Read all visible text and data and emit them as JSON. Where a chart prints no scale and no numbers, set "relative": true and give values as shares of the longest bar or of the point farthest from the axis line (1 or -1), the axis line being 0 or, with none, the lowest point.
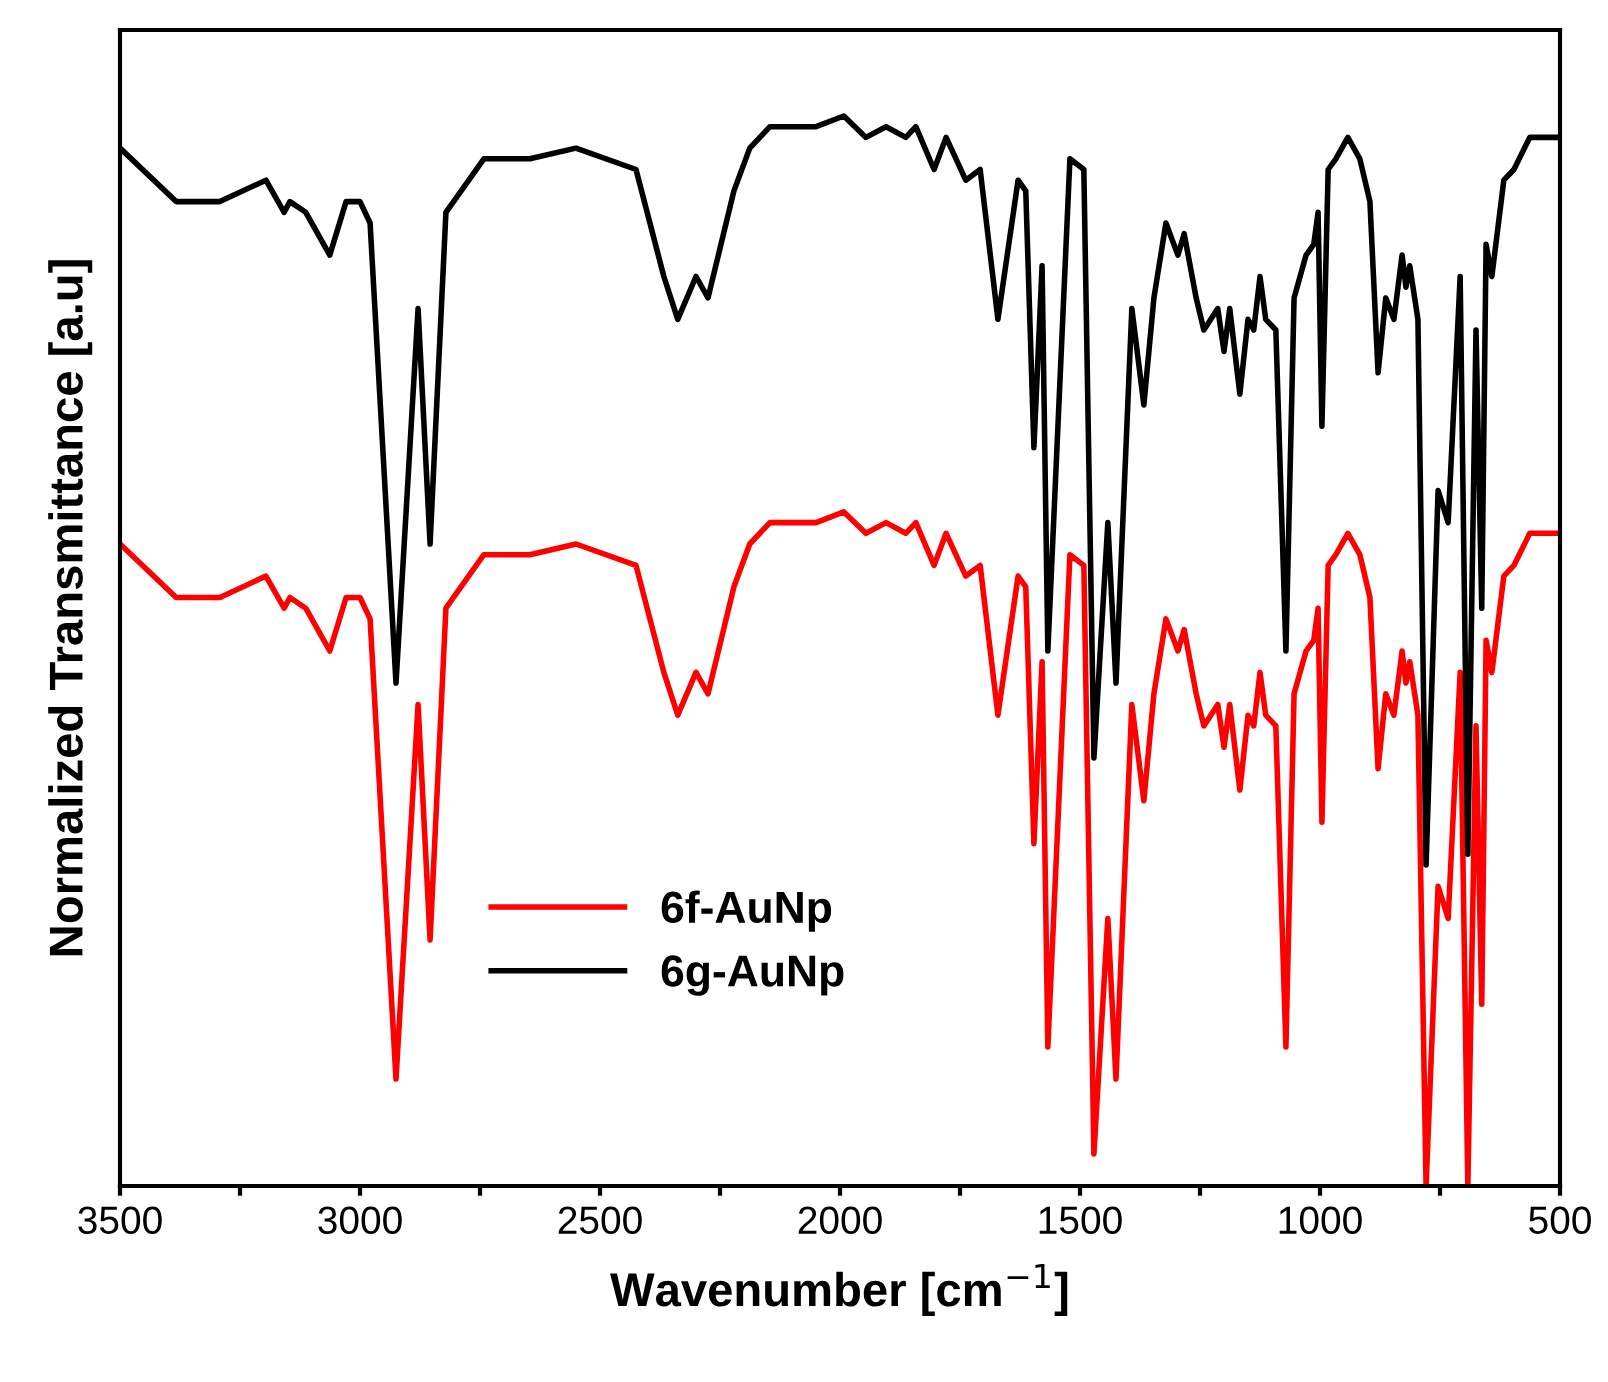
{
  "chart_data": {
    "type": "line",
    "relative": true,
    "xlabel": "Wavenumber [cm$^{−1}$]",
    "ylabel": "Normalized Transmittance [a.u]",
    "x": [
      3500,
      3383,
      3292,
      3196,
      3158,
      3146,
      3113,
      3063,
      3029,
      3000,
      2979,
      2925,
      2879,
      2854,
      2821,
      2742,
      2646,
      2550,
      2425,
      2367,
      2338,
      2300,
      2275,
      2221,
      2188,
      2146,
      2050,
      1992,
      1946,
      1904,
      1863,
      1842,
      1804,
      1779,
      1738,
      1708,
      1671,
      1629,
      1613,
      1596,
      1579,
      1567,
      1521,
      1492,
      1471,
      1442,
      1425,
      1392,
      1367,
      1346,
      1321,
      1296,
      1283,
      1258,
      1242,
      1213,
      1200,
      1188,
      1167,
      1150,
      1138,
      1125,
      1113,
      1092,
      1071,
      1054,
      1029,
      1013,
      1004,
      996,
      983,
      967,
      942,
      917,
      896,
      879,
      863,
      846,
      829,
      821,
      813,
      796,
      779,
      754,
      733,
      708,
      692,
      675,
      663,
      654,
      642,
      617,
      596,
      563,
      542,
      521,
      500
    ],
    "xlim": [
      3500,
      500
    ],
    "xticks": [
      3500,
      {
        "value": 3250,
        "label": null
      },
      3000,
      {
        "value": 2750,
        "label": null
      },
      2500,
      {
        "value": 2250,
        "label": null
      },
      2000,
      {
        "value": 1750,
        "label": null
      },
      1500,
      {
        "value": 1250,
        "label": null
      },
      1000,
      {
        "value": 750,
        "label": null
      },
      500
    ],
    "series": [
      {
        "name": "6f-AuNp",
        "color": "#ff0000",
        "values": [
          0.6,
          0.55,
          0.55,
          0.57,
          0.54,
          0.55,
          0.54,
          0.5,
          0.55,
          0.55,
          0.53,
          0.1,
          0.45,
          0.23,
          0.54,
          0.59,
          0.59,
          0.6,
          0.58,
          0.48,
          0.44,
          0.48,
          0.46,
          0.56,
          0.6,
          0.62,
          0.62,
          0.63,
          0.61,
          0.62,
          0.61,
          0.62,
          0.58,
          0.61,
          0.57,
          0.58,
          0.44,
          0.57,
          0.56,
          0.32,
          0.49,
          0.13,
          0.59,
          0.58,
          0.03,
          0.25,
          0.1,
          0.45,
          0.36,
          0.46,
          0.53,
          0.5,
          0.52,
          0.46,
          0.43,
          0.45,
          0.41,
          0.45,
          0.37,
          0.44,
          0.43,
          0.48,
          0.44,
          0.43,
          0.13,
          0.46,
          0.5,
          0.51,
          0.54,
          0.34,
          0.58,
          0.59,
          0.61,
          0.59,
          0.55,
          0.39,
          0.46,
          0.44,
          0.5,
          0.47,
          0.49,
          0.44,
          0,
          0.28,
          0.25,
          0.48,
          0,
          0.43,
          0.17,
          0.51,
          0.48,
          0.57,
          0.58,
          0.61,
          0.61,
          0.61,
          0.61
        ]
      },
      {
        "name": "6g-AuNp",
        "color": "#000000",
        "values": [
          0.97,
          0.92,
          0.92,
          0.94,
          0.91,
          0.92,
          0.91,
          0.87,
          0.92,
          0.92,
          0.9,
          0.47,
          0.82,
          0.6,
          0.91,
          0.96,
          0.96,
          0.97,
          0.95,
          0.85,
          0.81,
          0.85,
          0.83,
          0.93,
          0.97,
          0.99,
          0.99,
          1.0,
          0.98,
          0.99,
          0.98,
          0.99,
          0.95,
          0.98,
          0.94,
          0.95,
          0.81,
          0.94,
          0.93,
          0.69,
          0.86,
          0.5,
          0.96,
          0.95,
          0.4,
          0.62,
          0.47,
          0.82,
          0.73,
          0.83,
          0.9,
          0.87,
          0.89,
          0.83,
          0.8,
          0.82,
          0.78,
          0.82,
          0.74,
          0.81,
          0.8,
          0.85,
          0.81,
          0.8,
          0.5,
          0.83,
          0.87,
          0.88,
          0.91,
          0.71,
          0.95,
          0.96,
          0.98,
          0.96,
          0.92,
          0.76,
          0.83,
          0.81,
          0.87,
          0.84,
          0.86,
          0.81,
          0.3,
          0.65,
          0.62,
          0.85,
          0.31,
          0.8,
          0.54,
          0.88,
          0.85,
          0.94,
          0.95,
          0.98,
          0.98,
          0.98,
          0.98
        ]
      }
    ],
    "legend": "bottom left",
    "grid": false,
    "marker": "none",
    "line_style": "solid"
  }
}
